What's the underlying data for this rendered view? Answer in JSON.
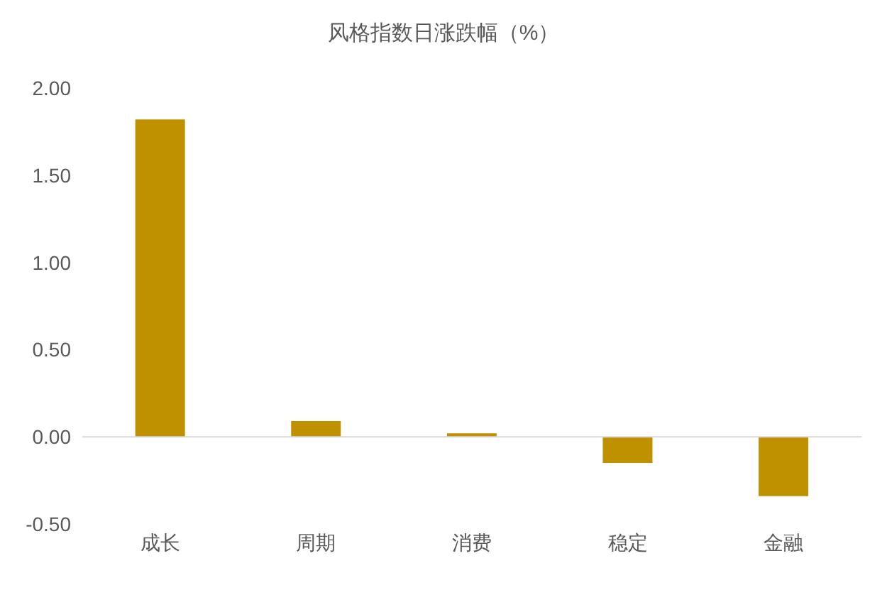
{
  "chart_data": {
    "type": "bar",
    "title": "风格指数日涨跌幅（%）",
    "categories": [
      "成长",
      "周期",
      "消费",
      "稳定",
      "金融"
    ],
    "values": [
      1.82,
      0.09,
      0.02,
      -0.15,
      -0.34
    ],
    "color": "#bf9000",
    "ylim": [
      -0.5,
      2.0
    ],
    "yticks": [
      {
        "value": -0.5,
        "label": "-0.50"
      },
      {
        "value": 0,
        "label": "0.00"
      },
      {
        "value": 0.5,
        "label": "0.50"
      },
      {
        "value": 1,
        "label": "1.00"
      },
      {
        "value": 1.5,
        "label": "1.50"
      },
      {
        "value": 2,
        "label": "2.00"
      }
    ],
    "ref_lines": [
      {
        "axis": "y",
        "value": 0,
        "color": "#d9d9d9"
      }
    ],
    "legend": false
  }
}
